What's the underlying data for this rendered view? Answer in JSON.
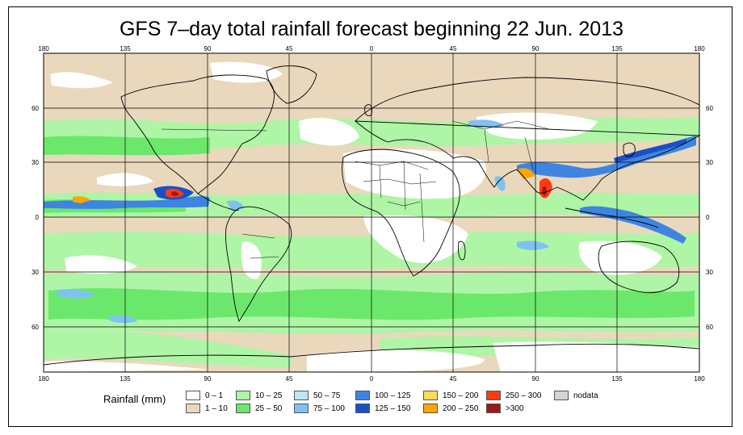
{
  "title": "GFS 7–day total rainfall forecast beginning 22 Jun. 2013",
  "lon_ticks": [
    "180",
    "135",
    "90",
    "45",
    "0",
    "45",
    "90",
    "135",
    "180"
  ],
  "lat_ticks": [
    "60",
    "30",
    "0",
    "30",
    "60"
  ],
  "legend": {
    "title": "Rainfall (mm)",
    "items": [
      {
        "label": "0 – 1",
        "color": "#ffffff"
      },
      {
        "label": "1 – 10",
        "color": "#ead8bd"
      },
      {
        "label": "10 – 25",
        "color": "#aef5a6"
      },
      {
        "label": "25 – 50",
        "color": "#6be86b"
      },
      {
        "label": "50 – 75",
        "color": "#bde7f5"
      },
      {
        "label": "75 – 100",
        "color": "#7ec3f0"
      },
      {
        "label": "100 – 125",
        "color": "#3d85e0"
      },
      {
        "label": "125 – 150",
        "color": "#1a4fc8"
      },
      {
        "label": "150 – 200",
        "color": "#ffd95a"
      },
      {
        "label": "200 – 250",
        "color": "#ffa500"
      },
      {
        "label": "250 – 300",
        "color": "#ff3b10"
      },
      {
        "label": ">300",
        "color": "#a01818"
      },
      {
        "label": "nodata",
        "color": "#d4d4d4"
      }
    ]
  }
}
